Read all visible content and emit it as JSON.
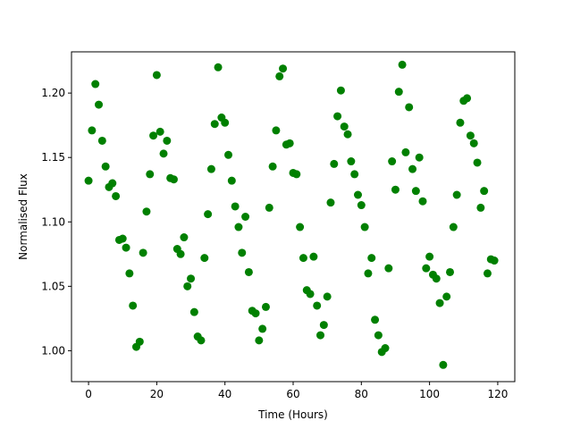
{
  "chart_data": {
    "type": "scatter",
    "title": "",
    "xlabel": "Time (Hours)",
    "ylabel": "Normalised Flux",
    "xlim": [
      -5,
      125
    ],
    "ylim": [
      0.976,
      1.232
    ],
    "xticks": [
      0,
      20,
      40,
      60,
      80,
      100,
      120
    ],
    "yticks": [
      1.0,
      1.05,
      1.1,
      1.15,
      1.2
    ],
    "xtick_labels": [
      "0",
      "20",
      "40",
      "60",
      "80",
      "100",
      "120"
    ],
    "ytick_labels": [
      "1.00",
      "1.05",
      "1.10",
      "1.15",
      "1.20"
    ],
    "grid": false,
    "marker_color": "#008000",
    "series": [
      {
        "x": [
          0,
          1,
          2,
          3,
          4,
          5,
          6,
          7,
          8,
          9,
          10,
          11,
          12,
          13,
          14,
          15,
          16,
          17,
          18,
          19,
          20,
          21,
          22,
          23,
          24,
          25,
          26,
          27,
          28,
          29,
          30,
          31,
          32,
          33,
          34,
          35,
          36,
          37,
          38,
          39,
          40,
          41,
          42,
          43,
          44,
          45,
          46,
          47,
          48,
          49,
          50,
          51,
          52,
          53,
          54,
          55,
          56,
          57,
          58,
          59,
          60,
          61,
          62,
          63,
          64,
          65,
          66,
          67,
          68,
          69,
          70,
          71,
          72,
          73,
          74,
          75,
          76,
          77,
          78,
          79,
          80,
          81,
          82,
          83,
          84,
          85,
          86,
          87,
          88,
          89,
          90,
          91,
          92,
          93,
          94,
          95,
          96,
          97,
          98,
          99,
          100,
          101,
          102,
          103,
          104,
          105,
          106,
          107,
          108,
          109,
          110,
          111,
          112,
          113,
          114,
          115,
          116,
          117,
          118,
          119
        ],
        "y": [
          1.132,
          1.171,
          1.207,
          1.191,
          1.163,
          1.143,
          1.127,
          1.13,
          1.12,
          1.086,
          1.087,
          1.08,
          1.06,
          1.035,
          1.003,
          1.007,
          1.076,
          1.108,
          1.137,
          1.167,
          1.214,
          1.17,
          1.153,
          1.163,
          1.134,
          1.133,
          1.079,
          1.075,
          1.088,
          1.05,
          1.056,
          1.03,
          1.011,
          1.008,
          1.072,
          1.106,
          1.141,
          1.176,
          1.22,
          1.181,
          1.177,
          1.152,
          1.132,
          1.112,
          1.096,
          1.076,
          1.104,
          1.061,
          1.031,
          1.029,
          1.008,
          1.017,
          1.034,
          1.111,
          1.143,
          1.171,
          1.213,
          1.219,
          1.16,
          1.161,
          1.138,
          1.137,
          1.096,
          1.072,
          1.047,
          1.044,
          1.073,
          1.035,
          1.012,
          1.02,
          1.042,
          1.115,
          1.145,
          1.182,
          1.202,
          1.174,
          1.168,
          1.147,
          1.137,
          1.121,
          1.113,
          1.096,
          1.06,
          1.072,
          1.024,
          1.012,
          0.999,
          1.002,
          1.064,
          1.147,
          1.125,
          1.201,
          1.222,
          1.154,
          1.189,
          1.141,
          1.124,
          1.15,
          1.116,
          1.064,
          1.073,
          1.059,
          1.056,
          1.037,
          0.989,
          1.042,
          1.061,
          1.096,
          1.121,
          1.177,
          1.194,
          1.196,
          1.167,
          1.161,
          1.146,
          1.111,
          1.124,
          1.06,
          1.071,
          1.07
        ]
      }
    ]
  }
}
